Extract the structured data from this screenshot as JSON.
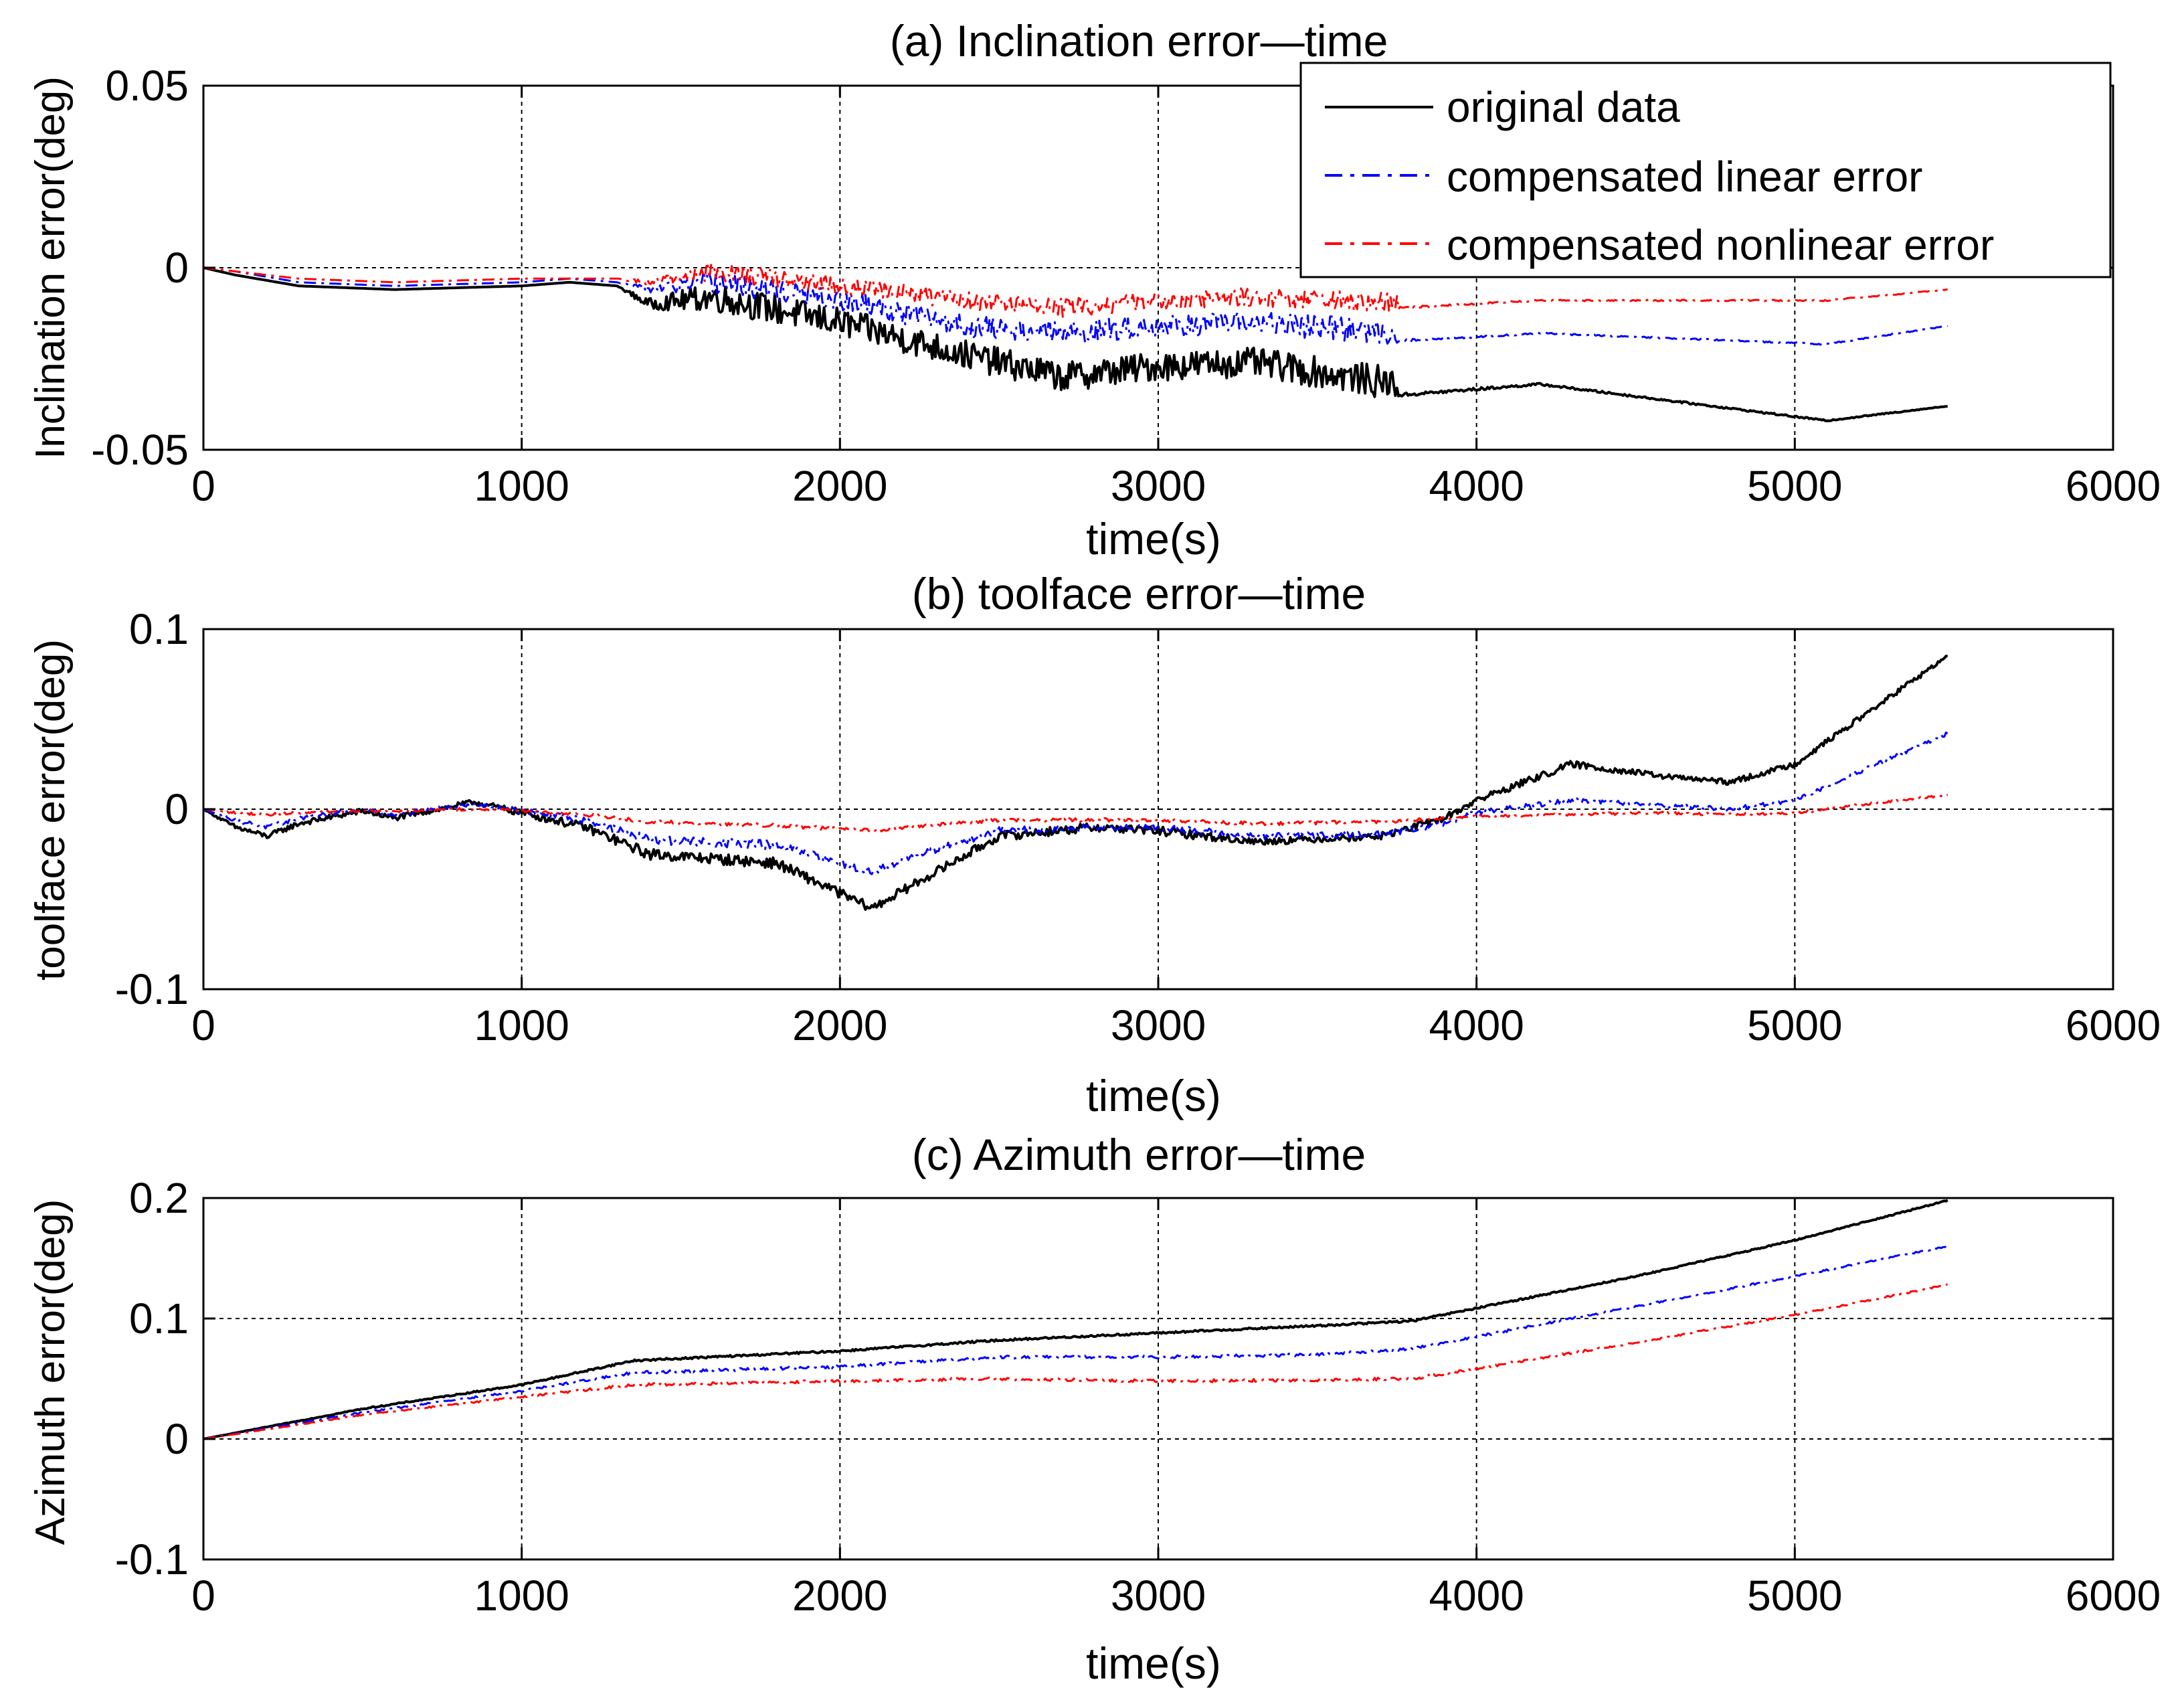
{
  "colors": {
    "original": "#000000",
    "linear": "#0000ff",
    "nonlinear": "#ff0000",
    "grid": "#000000",
    "background": "#ffffff"
  },
  "legend": {
    "placement": "top-right of panel (a)",
    "entries": [
      {
        "label": "original data",
        "style": "solid",
        "color": "#000000"
      },
      {
        "label": "compensated linear error",
        "style": "dash-dot",
        "color": "#0000ff"
      },
      {
        "label": "compensated nonlinear error",
        "style": "dash-dot",
        "color": "#ff0000"
      }
    ]
  },
  "chart_data": [
    {
      "id": "a",
      "type": "line",
      "title": "(a) Inclination error—time",
      "xlabel": "time(s)",
      "ylabel": "Inclination error(deg)",
      "xlim": [
        0,
        6000
      ],
      "ylim": [
        -0.05,
        0.05
      ],
      "xticks": [
        0,
        1000,
        2000,
        3000,
        4000,
        5000,
        6000
      ],
      "xtick_labels": [
        "0",
        "1000",
        "2000",
        "3000",
        "4000",
        "5000",
        "6000"
      ],
      "yticks": [
        -0.05,
        0,
        0.05
      ],
      "ytick_labels": [
        "-0.05",
        "0",
        "0.05"
      ],
      "grid": true,
      "series": [
        {
          "name": "original data",
          "noise": [
            0,
            0,
            0,
            0,
            0,
            0,
            0,
            0.0015,
            0.004,
            0.004,
            0.004,
            0.004,
            0.004,
            0.004,
            0.0045,
            0.0005,
            0.0003,
            0.0002,
            0.0001
          ],
          "x": [
            0,
            100,
            300,
            600,
            1000,
            1150,
            1300,
            1400,
            1600,
            2000,
            2400,
            2700,
            3000,
            3300,
            3750,
            3760,
            4200,
            5100,
            5480
          ],
          "y": [
            0,
            -0.002,
            -0.005,
            -0.006,
            -0.005,
            -0.004,
            -0.005,
            -0.01,
            -0.008,
            -0.015,
            -0.024,
            -0.03,
            -0.027,
            -0.026,
            -0.032,
            -0.035,
            -0.032,
            -0.042,
            -0.038
          ]
        },
        {
          "name": "compensated linear error",
          "noise": [
            0,
            0,
            0,
            0,
            0,
            0,
            0,
            0.001,
            0.003,
            0.003,
            0.003,
            0.003,
            0.003,
            0.003,
            0.0035,
            0.0004,
            0.0002,
            0.0002,
            0.0001
          ],
          "x": [
            0,
            100,
            300,
            600,
            1000,
            1150,
            1300,
            1400,
            1600,
            2000,
            2400,
            2700,
            3000,
            3300,
            3750,
            3760,
            4200,
            5100,
            5480
          ],
          "y": [
            0,
            -0.001,
            -0.004,
            -0.005,
            -0.004,
            -0.003,
            -0.004,
            -0.006,
            -0.004,
            -0.009,
            -0.016,
            -0.018,
            -0.016,
            -0.015,
            -0.018,
            -0.02,
            -0.018,
            -0.021,
            -0.016
          ]
        },
        {
          "name": "compensated nonlinear error",
          "noise": [
            0,
            0,
            0,
            0,
            0,
            0,
            0,
            0.001,
            0.0025,
            0.0025,
            0.0025,
            0.0025,
            0.0025,
            0.0025,
            0.003,
            0.0003,
            0.0002,
            0.0002,
            0.0001
          ],
          "x": [
            0,
            100,
            300,
            600,
            1000,
            1150,
            1300,
            1400,
            1600,
            2000,
            2400,
            2700,
            3000,
            3300,
            3750,
            3760,
            4200,
            5100,
            5480
          ],
          "y": [
            0,
            -0.001,
            -0.003,
            -0.004,
            -0.003,
            -0.003,
            -0.003,
            -0.004,
            -0.001,
            -0.005,
            -0.009,
            -0.011,
            -0.009,
            -0.008,
            -0.01,
            -0.011,
            -0.009,
            -0.009,
            -0.006
          ]
        }
      ]
    },
    {
      "id": "b",
      "type": "line",
      "title": "(b) toolface error—time",
      "xlabel": "time(s)",
      "ylabel": "toolface error(deg)",
      "xlim": [
        0,
        6000
      ],
      "ylim": [
        -0.1,
        0.1
      ],
      "xticks": [
        0,
        1000,
        2000,
        3000,
        4000,
        5000,
        6000
      ],
      "xtick_labels": [
        "0",
        "1000",
        "2000",
        "3000",
        "4000",
        "5000",
        "6000"
      ],
      "yticks": [
        -0.1,
        0,
        0.1
      ],
      "ytick_labels": [
        "-0.1",
        "0",
        "0.1"
      ],
      "grid": true,
      "series": [
        {
          "name": "original data",
          "noise": [
            0,
            0.0015,
            0.0015,
            0.0015,
            0.0015,
            0.0015,
            0.0015,
            0.002,
            0.0025,
            0.003,
            0.003,
            0.0025,
            0.0025,
            0.0025,
            0.0025,
            0.0025,
            0.002,
            0.002,
            0.002,
            0.002,
            0.002,
            0.0015,
            0.0015,
            0.0015,
            0.0015
          ],
          "x": [
            0,
            100,
            200,
            300,
            500,
            600,
            850,
            1000,
            1200,
            1400,
            1800,
            2100,
            2200,
            2500,
            2800,
            3000,
            3300,
            3700,
            3900,
            4000,
            4300,
            4600,
            4800,
            5000,
            5480
          ],
          "y": [
            0,
            -0.01,
            -0.015,
            -0.008,
            -0.001,
            -0.005,
            0.004,
            -0.002,
            -0.01,
            -0.025,
            -0.03,
            -0.055,
            -0.045,
            -0.015,
            -0.01,
            -0.012,
            -0.018,
            -0.015,
            -0.005,
            0.005,
            0.025,
            0.018,
            0.015,
            0.025,
            0.085
          ]
        },
        {
          "name": "compensated linear error",
          "noise": [
            0,
            0.0012,
            0.0012,
            0.0012,
            0.0012,
            0.0012,
            0.0012,
            0.0015,
            0.002,
            0.0025,
            0.0025,
            0.002,
            0.002,
            0.002,
            0.002,
            0.002,
            0.0018,
            0.0018,
            0.0015,
            0.0015,
            0.0015,
            0.0012,
            0.0012,
            0.0012,
            0.001
          ],
          "x": [
            0,
            100,
            200,
            300,
            500,
            600,
            850,
            1000,
            1200,
            1400,
            1800,
            2100,
            2200,
            2500,
            2800,
            3000,
            3300,
            3700,
            3900,
            4000,
            4300,
            4600,
            4800,
            5000,
            5480
          ],
          "y": [
            0,
            -0.006,
            -0.01,
            -0.005,
            0.0,
            -0.003,
            0.003,
            -0.001,
            -0.006,
            -0.017,
            -0.02,
            -0.035,
            -0.028,
            -0.012,
            -0.01,
            -0.01,
            -0.015,
            -0.014,
            -0.008,
            -0.002,
            0.005,
            0.002,
            0.0,
            0.005,
            0.042
          ]
        },
        {
          "name": "compensated nonlinear error",
          "noise": [
            0,
            0.0008,
            0.0008,
            0.0008,
            0.0008,
            0.0008,
            0.0008,
            0.0008,
            0.001,
            0.001,
            0.001,
            0.001,
            0.001,
            0.001,
            0.001,
            0.001,
            0.001,
            0.001,
            0.0008,
            0.0008,
            0.0008,
            0.0008,
            0.0008,
            0.0008,
            0.0006
          ],
          "x": [
            0,
            100,
            200,
            300,
            500,
            600,
            850,
            1000,
            1200,
            1400,
            1800,
            2100,
            2200,
            2500,
            2800,
            3000,
            3300,
            3700,
            3900,
            4000,
            4300,
            4600,
            4800,
            5000,
            5480
          ],
          "y": [
            0,
            -0.002,
            -0.003,
            -0.002,
            -0.001,
            -0.001,
            0.0,
            -0.001,
            -0.003,
            -0.007,
            -0.009,
            -0.012,
            -0.01,
            -0.006,
            -0.006,
            -0.006,
            -0.008,
            -0.007,
            -0.005,
            -0.004,
            -0.003,
            -0.002,
            -0.003,
            -0.002,
            0.008
          ]
        }
      ]
    },
    {
      "id": "c",
      "type": "line",
      "title": "(c) Azimuth error—time",
      "xlabel": "time(s)",
      "ylabel": "Azimuth error(deg)",
      "xlim": [
        0,
        6000
      ],
      "ylim": [
        -0.1,
        0.2
      ],
      "xticks": [
        0,
        1000,
        2000,
        3000,
        4000,
        5000,
        6000
      ],
      "xtick_labels": [
        "0",
        "1000",
        "2000",
        "3000",
        "4000",
        "5000",
        "6000"
      ],
      "yticks": [
        -0.1,
        0,
        0.1,
        0.2
      ],
      "ytick_labels": [
        "-0.1",
        "0",
        "0.1",
        "0.2"
      ],
      "grid": true,
      "series": [
        {
          "name": "original data",
          "noise": [
            0,
            0.0005,
            0.0006,
            0.0008,
            0.0008,
            0.0008,
            0.0008,
            0.0008,
            0.0008,
            0.0006,
            0.0005,
            0.0005
          ],
          "x": [
            0,
            500,
            1000,
            1350,
            2000,
            2500,
            3000,
            3500,
            3800,
            4500,
            5000,
            5480
          ],
          "y": [
            0,
            0.025,
            0.045,
            0.065,
            0.073,
            0.082,
            0.088,
            0.094,
            0.098,
            0.135,
            0.165,
            0.198
          ]
        },
        {
          "name": "compensated linear error",
          "noise": [
            0,
            0.0006,
            0.0008,
            0.0012,
            0.0012,
            0.0012,
            0.0012,
            0.0012,
            0.0012,
            0.0008,
            0.0007,
            0.0006
          ],
          "x": [
            0,
            500,
            1000,
            1350,
            2000,
            2500,
            3000,
            3500,
            3800,
            4500,
            5000,
            5480
          ],
          "y": [
            0,
            0.022,
            0.04,
            0.055,
            0.06,
            0.068,
            0.068,
            0.07,
            0.075,
            0.11,
            0.135,
            0.16
          ]
        },
        {
          "name": "compensated nonlinear error",
          "noise": [
            0,
            0.0005,
            0.0008,
            0.0012,
            0.0012,
            0.0012,
            0.0012,
            0.0012,
            0.0012,
            0.0008,
            0.0007,
            0.0006
          ],
          "x": [
            0,
            500,
            1000,
            1350,
            2000,
            2500,
            3000,
            3500,
            3800,
            4500,
            5000,
            5480
          ],
          "y": [
            0,
            0.02,
            0.035,
            0.045,
            0.048,
            0.05,
            0.048,
            0.049,
            0.05,
            0.08,
            0.103,
            0.128
          ]
        }
      ]
    }
  ]
}
